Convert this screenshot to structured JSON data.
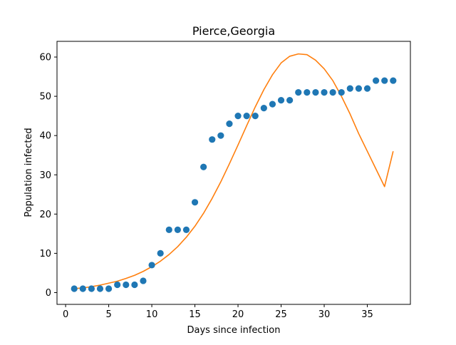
{
  "chart_data": {
    "type": "scatter",
    "title": "Pierce,Georgia",
    "xlabel": "Days since infection",
    "ylabel": "Population infected",
    "xlim": [
      -1,
      40
    ],
    "ylim": [
      -3,
      64
    ],
    "xticks": [
      0,
      5,
      10,
      15,
      20,
      25,
      30,
      35
    ],
    "yticks": [
      0,
      10,
      20,
      30,
      40,
      50,
      60
    ],
    "grid": false,
    "legend": "none",
    "series": [
      {
        "kind": "scatter",
        "color": "#1f77b4",
        "x": [
          1,
          2,
          3,
          4,
          5,
          6,
          7,
          8,
          9,
          10,
          11,
          12,
          13,
          14,
          15,
          16,
          17,
          18,
          19,
          20,
          21,
          22,
          23,
          24,
          25,
          26,
          27,
          28,
          29,
          30,
          31,
          32,
          33,
          34,
          35,
          36,
          37,
          38
        ],
        "y": [
          1,
          1,
          1,
          1,
          1,
          2,
          2,
          2,
          3,
          7,
          10,
          16,
          16,
          16,
          23,
          32,
          39,
          40,
          43,
          45,
          45,
          45,
          47,
          48,
          49,
          49,
          51,
          51,
          51,
          51,
          51,
          51,
          52,
          52,
          52,
          54,
          54,
          54
        ]
      },
      {
        "kind": "line",
        "color": "#ff7f0e",
        "x": [
          1,
          2,
          3,
          4,
          5,
          6,
          7,
          8,
          9,
          10,
          11,
          12,
          13,
          14,
          15,
          16,
          17,
          18,
          19,
          20,
          21,
          22,
          23,
          24,
          25,
          26,
          27,
          28,
          29,
          30,
          31,
          32,
          33,
          34,
          35,
          36,
          37,
          38
        ],
        "y": [
          1.0,
          1.2,
          1.5,
          1.9,
          2.4,
          2.9,
          3.6,
          4.4,
          5.4,
          6.6,
          8.0,
          9.7,
          11.7,
          14.1,
          16.9,
          20.2,
          24.0,
          28.2,
          32.8,
          37.6,
          42.5,
          47.3,
          51.7,
          55.5,
          58.5,
          60.2,
          60.8,
          60.6,
          59.2,
          57.0,
          54.0,
          50.0,
          45.5,
          40.5,
          36.0,
          31.5,
          27.0,
          36.0
        ]
      }
    ]
  }
}
